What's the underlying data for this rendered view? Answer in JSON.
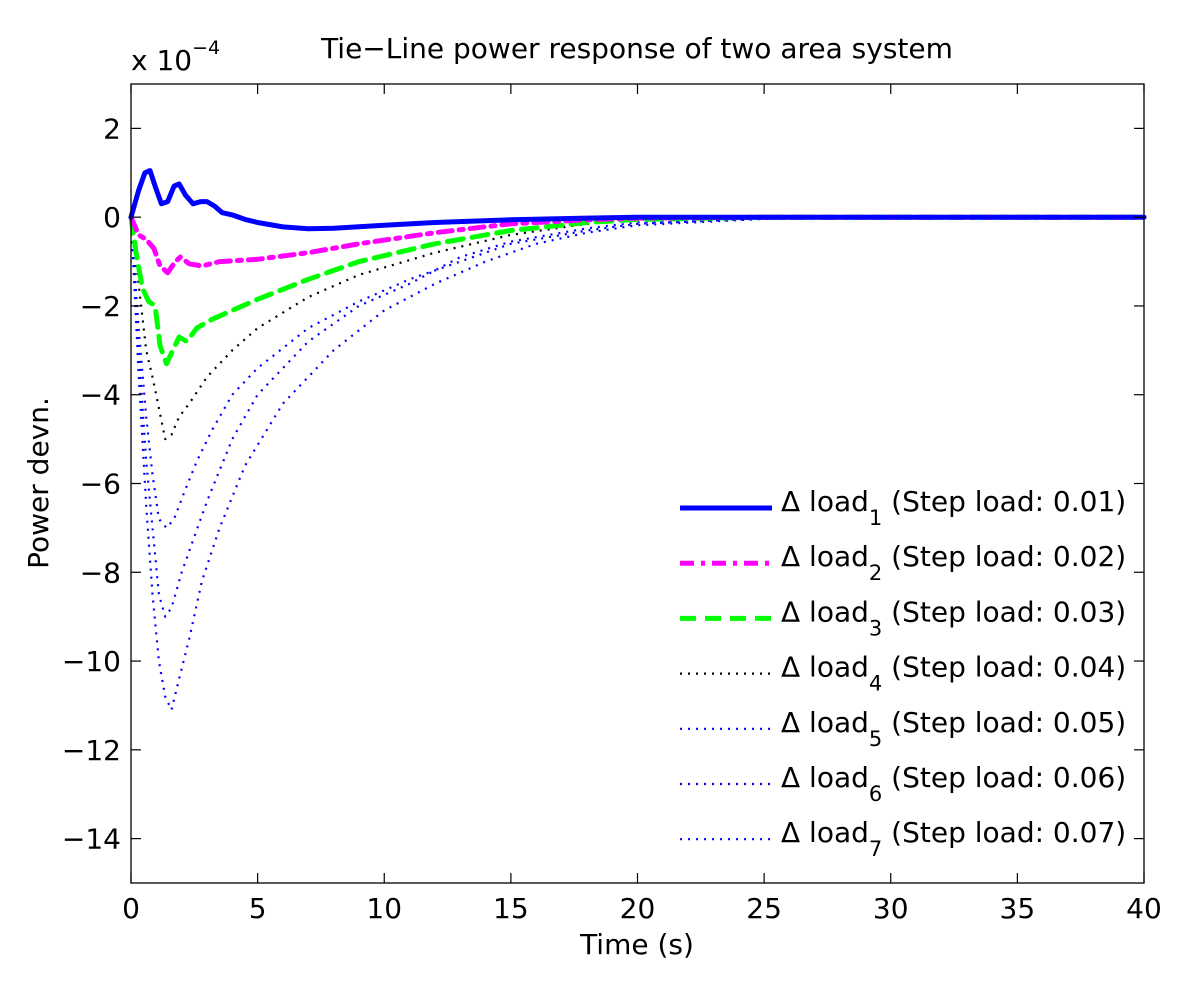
{
  "chart_data": {
    "type": "line",
    "title": "Tie−Line power response of two area system",
    "xlabel": "Time (s)",
    "ylabel": "Power devn.",
    "y_multiplier": {
      "base": "x 10",
      "exponent": "−4"
    },
    "xlim": [
      0,
      40
    ],
    "ylim": [
      -15,
      3
    ],
    "x_ticks": [
      0,
      5,
      10,
      15,
      20,
      25,
      30,
      35,
      40
    ],
    "x_tick_labels": [
      "0",
      "5",
      "10",
      "15",
      "20",
      "25",
      "30",
      "35",
      "40"
    ],
    "y_ticks": [
      2,
      0,
      -2,
      -4,
      -6,
      -8,
      -10,
      -12,
      -14
    ],
    "y_tick_labels": [
      "2",
      "0",
      "−2",
      "−4",
      "−6",
      "−8",
      "−10",
      "−12",
      "−14"
    ],
    "grid": false,
    "legend_position": "lower-right",
    "series": [
      {
        "legend": {
          "prefix": "Δ load",
          "sub": "1",
          "suffix": " (Step load: 0.01)"
        },
        "color": "#0000ff",
        "style": "solid",
        "points": [
          [
            0,
            0
          ],
          [
            0.3,
            0.6
          ],
          [
            0.55,
            1.0
          ],
          [
            0.75,
            1.05
          ],
          [
            0.95,
            0.7
          ],
          [
            1.2,
            0.3
          ],
          [
            1.45,
            0.35
          ],
          [
            1.7,
            0.7
          ],
          [
            1.9,
            0.75
          ],
          [
            2.15,
            0.5
          ],
          [
            2.45,
            0.3
          ],
          [
            2.75,
            0.35
          ],
          [
            3.0,
            0.35
          ],
          [
            3.3,
            0.25
          ],
          [
            3.6,
            0.1
          ],
          [
            4.0,
            0.05
          ],
          [
            4.5,
            -0.05
          ],
          [
            5,
            -0.12
          ],
          [
            6,
            -0.22
          ],
          [
            7,
            -0.26
          ],
          [
            8,
            -0.25
          ],
          [
            10,
            -0.18
          ],
          [
            12,
            -0.12
          ],
          [
            15,
            -0.06
          ],
          [
            18,
            -0.02
          ],
          [
            20,
            0
          ],
          [
            25,
            0
          ],
          [
            30,
            0
          ],
          [
            40,
            0
          ]
        ]
      },
      {
        "legend": {
          "prefix": "Δ load",
          "sub": "2",
          "suffix": " (Step load: 0.02)"
        },
        "color": "#ff00ff",
        "style": "dashdot",
        "points": [
          [
            0,
            0
          ],
          [
            0.3,
            -0.4
          ],
          [
            0.6,
            -0.5
          ],
          [
            0.9,
            -0.7
          ],
          [
            1.15,
            -1.1
          ],
          [
            1.45,
            -1.25
          ],
          [
            1.75,
            -1.0
          ],
          [
            1.95,
            -0.9
          ],
          [
            2.3,
            -1.05
          ],
          [
            2.8,
            -1.1
          ],
          [
            3.5,
            -1.0
          ],
          [
            5,
            -0.95
          ],
          [
            7,
            -0.8
          ],
          [
            9,
            -0.6
          ],
          [
            12,
            -0.35
          ],
          [
            15,
            -0.15
          ],
          [
            18,
            -0.06
          ],
          [
            20,
            -0.02
          ],
          [
            25,
            0
          ],
          [
            40,
            0
          ]
        ]
      },
      {
        "legend": {
          "prefix": "Δ load",
          "sub": "3",
          "suffix": " (Step load: 0.03)"
        },
        "color": "#00ff00",
        "style": "dashed",
        "points": [
          [
            0,
            0
          ],
          [
            0.2,
            -0.8
          ],
          [
            0.45,
            -1.6
          ],
          [
            0.7,
            -1.9
          ],
          [
            0.95,
            -2.0
          ],
          [
            1.15,
            -2.9
          ],
          [
            1.4,
            -3.3
          ],
          [
            1.65,
            -3.0
          ],
          [
            1.9,
            -2.7
          ],
          [
            2.2,
            -2.8
          ],
          [
            2.6,
            -2.5
          ],
          [
            3.2,
            -2.3
          ],
          [
            4,
            -2.1
          ],
          [
            5,
            -1.85
          ],
          [
            7,
            -1.4
          ],
          [
            9,
            -1.0
          ],
          [
            12,
            -0.6
          ],
          [
            15,
            -0.3
          ],
          [
            18,
            -0.12
          ],
          [
            20,
            -0.05
          ],
          [
            25,
            0
          ],
          [
            40,
            0
          ]
        ]
      },
      {
        "legend": {
          "prefix": "Δ load",
          "sub": "4",
          "suffix": " (Step load: 0.04)"
        },
        "color": "#000000",
        "style": "dotted",
        "points": [
          [
            0,
            0
          ],
          [
            0.3,
            -1.5
          ],
          [
            0.6,
            -3.0
          ],
          [
            0.85,
            -3.6
          ],
          [
            1.1,
            -4.3
          ],
          [
            1.35,
            -5.0
          ],
          [
            1.6,
            -4.9
          ],
          [
            1.9,
            -4.5
          ],
          [
            2.3,
            -4.2
          ],
          [
            3,
            -3.6
          ],
          [
            4,
            -3.0
          ],
          [
            5,
            -2.5
          ],
          [
            7,
            -1.8
          ],
          [
            9,
            -1.3
          ],
          [
            12,
            -0.8
          ],
          [
            15,
            -0.4
          ],
          [
            18,
            -0.15
          ],
          [
            20,
            -0.06
          ],
          [
            25,
            0
          ],
          [
            40,
            0
          ]
        ]
      },
      {
        "legend": {
          "prefix": "Δ load",
          "sub": "5",
          "suffix": " (Step load: 0.05)"
        },
        "color": "#0000ff",
        "style": "dotted",
        "points": [
          [
            0,
            0
          ],
          [
            0.3,
            -3.0
          ],
          [
            0.6,
            -5.5
          ],
          [
            0.85,
            -7.0
          ],
          [
            1.1,
            -8.5
          ],
          [
            1.35,
            -9.0
          ],
          [
            1.6,
            -8.8
          ],
          [
            2.0,
            -8.0
          ],
          [
            2.5,
            -7.2
          ],
          [
            3,
            -6.4
          ],
          [
            4,
            -5.0
          ],
          [
            5,
            -4.0
          ],
          [
            7,
            -2.8
          ],
          [
            9,
            -2.0
          ],
          [
            11,
            -1.5
          ],
          [
            13,
            -0.9
          ],
          [
            15,
            -0.55
          ],
          [
            18,
            -0.25
          ],
          [
            20,
            -0.12
          ],
          [
            25,
            -0.02
          ],
          [
            30,
            0
          ],
          [
            40,
            0
          ]
        ]
      },
      {
        "legend": {
          "prefix": "Δ load",
          "sub": "6",
          "suffix": " (Step load: 0.06)"
        },
        "color": "#0000ff",
        "style": "dotted",
        "points": [
          [
            0,
            0
          ],
          [
            0.3,
            -2.5
          ],
          [
            0.6,
            -4.5
          ],
          [
            0.85,
            -5.8
          ],
          [
            1.1,
            -6.8
          ],
          [
            1.4,
            -7.0
          ],
          [
            1.7,
            -6.8
          ],
          [
            2.1,
            -6.2
          ],
          [
            2.6,
            -5.5
          ],
          [
            3.2,
            -4.8
          ],
          [
            4,
            -4.0
          ],
          [
            5,
            -3.4
          ],
          [
            7,
            -2.5
          ],
          [
            9,
            -1.9
          ],
          [
            11,
            -1.4
          ],
          [
            13,
            -1.0
          ],
          [
            15,
            -0.6
          ],
          [
            18,
            -0.3
          ],
          [
            20,
            -0.15
          ],
          [
            25,
            -0.03
          ],
          [
            30,
            0
          ],
          [
            40,
            0
          ]
        ]
      },
      {
        "legend": {
          "prefix": "Δ load",
          "sub": "7",
          "suffix": " (Step load: 0.07)"
        },
        "color": "#0000ff",
        "style": "dotted",
        "points": [
          [
            0,
            0
          ],
          [
            0.3,
            -3.5
          ],
          [
            0.6,
            -6.5
          ],
          [
            0.85,
            -8.5
          ],
          [
            1.1,
            -10.0
          ],
          [
            1.35,
            -10.8
          ],
          [
            1.6,
            -11.1
          ],
          [
            1.9,
            -10.4
          ],
          [
            2.3,
            -9.5
          ],
          [
            2.8,
            -8.2
          ],
          [
            3.5,
            -7.0
          ],
          [
            4.5,
            -5.6
          ],
          [
            6,
            -4.2
          ],
          [
            8,
            -3.0
          ],
          [
            10,
            -2.1
          ],
          [
            12,
            -1.5
          ],
          [
            14,
            -1.0
          ],
          [
            16,
            -0.6
          ],
          [
            18,
            -0.35
          ],
          [
            20,
            -0.18
          ],
          [
            25,
            -0.04
          ],
          [
            30,
            0
          ],
          [
            40,
            0
          ]
        ]
      }
    ]
  }
}
